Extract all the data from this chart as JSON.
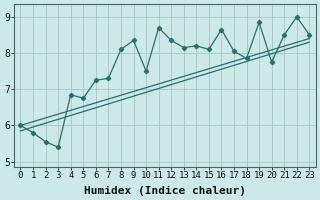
{
  "title": "",
  "xlabel": "Humidex (Indice chaleur)",
  "ylabel": "",
  "xlim": [
    -0.5,
    23.5
  ],
  "ylim": [
    4.85,
    9.35
  ],
  "yticks": [
    5,
    6,
    7,
    8,
    9
  ],
  "xticks": [
    0,
    1,
    2,
    3,
    4,
    5,
    6,
    7,
    8,
    9,
    10,
    11,
    12,
    13,
    14,
    15,
    16,
    17,
    18,
    19,
    20,
    21,
    22,
    23
  ],
  "bg_color": "#cce8e8",
  "grid_color": "#aacccc",
  "line_color": "#267070",
  "line1_x": [
    0,
    1,
    2,
    3,
    4,
    5,
    6,
    7,
    8,
    9,
    10,
    11,
    12,
    13,
    14,
    15,
    16,
    17,
    18,
    19,
    20,
    21,
    22,
    23
  ],
  "line1_y": [
    6.0,
    5.8,
    5.55,
    5.4,
    6.85,
    6.75,
    7.25,
    7.3,
    8.1,
    8.35,
    7.5,
    8.7,
    8.35,
    8.15,
    8.2,
    8.1,
    8.65,
    8.05,
    7.85,
    8.85,
    7.75,
    8.5,
    9.0,
    8.5
  ],
  "line2_x": [
    0,
    23
  ],
  "line2_y": [
    6.0,
    8.4
  ],
  "line3_x": [
    0,
    23
  ],
  "line3_y": [
    5.85,
    8.3
  ],
  "font_family": "monospace",
  "xlabel_fontsize": 8,
  "tick_fontsize": 6.5
}
